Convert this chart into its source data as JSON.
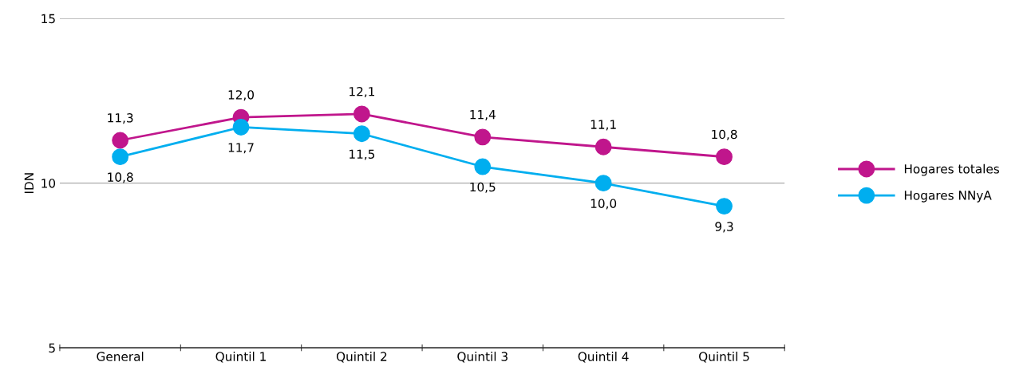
{
  "chart_data": {
    "type": "line",
    "ylabel": "IDN",
    "categories": [
      "General",
      "Quintil 1",
      "Quintil 2",
      "Quintil 3",
      "Quintil 4",
      "Quintil 5"
    ],
    "series": [
      {
        "name": "Hogares totales",
        "color": "#c0168c",
        "values": [
          11.3,
          12.0,
          12.1,
          11.4,
          11.1,
          10.8
        ],
        "value_labels": [
          "11,3",
          "12,0",
          "12,1",
          "11,4",
          "11,1",
          "10,8"
        ]
      },
      {
        "name": "Hogares NNyA",
        "color": "#00aeef",
        "values": [
          10.8,
          11.7,
          11.5,
          10.5,
          10.0,
          9.3
        ],
        "value_labels": [
          "10,8",
          "11,7",
          "11,5",
          "10,5",
          "10,0",
          "9,3"
        ]
      }
    ],
    "ylim": [
      5,
      15
    ],
    "yticks": [
      5,
      10,
      15
    ],
    "grid": "y",
    "legend": "right",
    "marker": "circle",
    "line_style": "solid"
  }
}
